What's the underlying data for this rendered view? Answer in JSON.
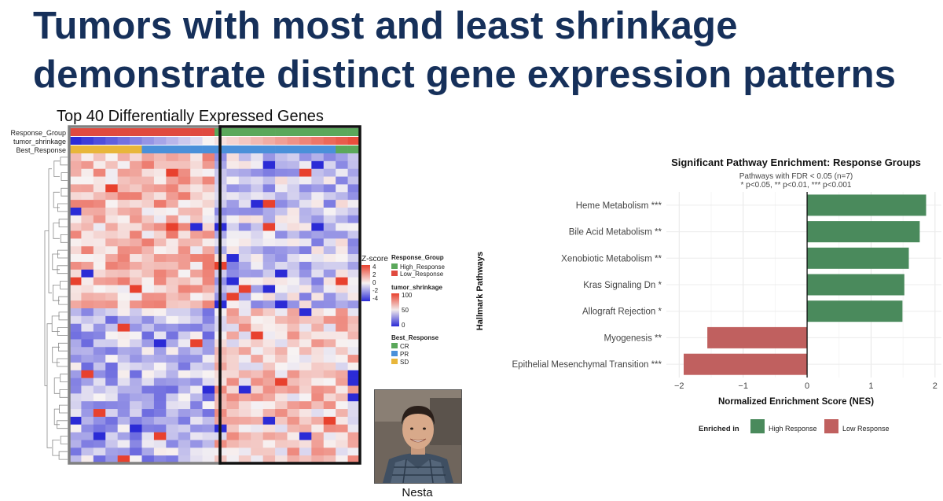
{
  "slide": {
    "title_line1": "Tumors with most and least shrinkage",
    "title_line2": "demonstrate distinct gene expression patterns"
  },
  "heatmap": {
    "title": "Top 40 Differentially Expressed Genes",
    "annotation_rows": [
      "Response_Group",
      "tumor_shrinkage",
      "Best_Response"
    ],
    "n_genes": 40,
    "n_samples": 24,
    "samples_low_response": 12,
    "samples_high_response": 12,
    "legend": {
      "zscore_title": "Z-score",
      "zscore_ticks": [
        "4",
        "2",
        "0",
        "-2",
        "-4"
      ],
      "response_group_title": "Response_Group",
      "response_group_items": [
        {
          "label": "High_Response",
          "color": "#5ba85b"
        },
        {
          "label": "Low_Response",
          "color": "#e04a3f"
        }
      ],
      "shrinkage_title": "tumor_shrinkage",
      "shrinkage_ticks": [
        "100",
        "50",
        "0"
      ],
      "best_response_title": "Best_Response",
      "best_response_items": [
        {
          "label": "CR",
          "color": "#5ba85b"
        },
        {
          "label": "PR",
          "color": "#4a90d9"
        },
        {
          "label": "SD",
          "color": "#e8b63a"
        }
      ]
    },
    "colors": {
      "high": "#e8412e",
      "mid": "#f7f3f3",
      "low": "#2b2bd6",
      "box_low": "#808080",
      "box_high": "#111111"
    }
  },
  "photo": {
    "caption": "Nesta"
  },
  "chart_data": {
    "type": "bar",
    "orientation": "horizontal",
    "title": "Significant Pathway Enrichment: Response Groups",
    "subtitle_line1": "Pathways with FDR < 0.05 (n=7)",
    "subtitle_line2": "* p<0.05, ** p<0.01, *** p<0.001",
    "ylabel": "Hallmark Pathways",
    "xlabel": "Normalized Enrichment Score (NES)",
    "xlim": [
      -2.2,
      2.1
    ],
    "xticks": [
      -2,
      -1,
      0,
      1,
      2
    ],
    "categories": [
      "Heme Metabolism ***",
      "Bile Acid Metabolism **",
      "Xenobiotic Metabolism **",
      "Kras Signaling Dn *",
      "Allograft Rejection *",
      "Myogenesis **",
      "Epithelial Mesenchymal Transition ***"
    ],
    "values": [
      1.86,
      1.76,
      1.59,
      1.52,
      1.49,
      -1.56,
      -1.93
    ],
    "groups": [
      "High Response",
      "High Response",
      "High Response",
      "High Response",
      "High Response",
      "Low Response",
      "Low Response"
    ],
    "legend": {
      "title": "Enriched in",
      "placement": "bottom",
      "items": [
        {
          "label": "High Response",
          "color": "#4a8a5c"
        },
        {
          "label": "Low Response",
          "color": "#c0605f"
        }
      ]
    },
    "grid": true
  }
}
